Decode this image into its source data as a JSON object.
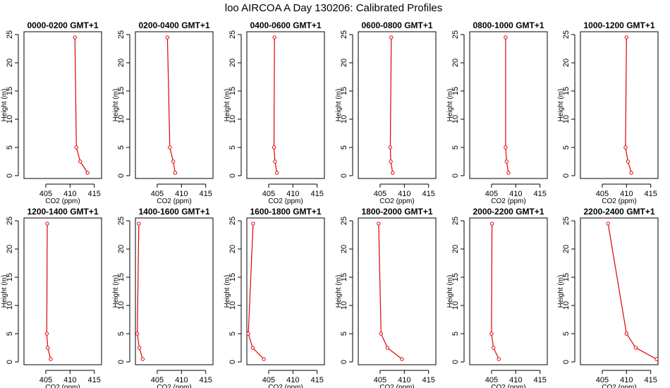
{
  "title": "loo AIRCOA A  Day 130206: Calibrated Profiles",
  "chart_data": {
    "type": "line",
    "xlabel": "CO2 (ppm)",
    "ylabel": "Height (m)",
    "xlim": [
      400.5,
      416.5
    ],
    "ylim": [
      -0.5,
      25.5
    ],
    "xticks": [
      405,
      410,
      415
    ],
    "yticks": [
      0,
      5,
      10,
      15,
      20,
      25
    ],
    "heights": [
      0.5,
      2.5,
      5,
      24.5
    ],
    "panels": [
      {
        "title": "0000-0200 GMT+1",
        "co2": [
          413.6,
          412.1,
          411.3,
          411.0
        ]
      },
      {
        "title": "0200-0400 GMT+1",
        "co2": [
          408.7,
          408.3,
          407.6,
          407.1
        ]
      },
      {
        "title": "0400-0600 GMT+1",
        "co2": [
          406.7,
          406.3,
          406.1,
          406.2
        ]
      },
      {
        "title": "0600-0800 GMT+1",
        "co2": [
          407.6,
          407.2,
          407.1,
          407.3
        ]
      },
      {
        "title": "0800-1000 GMT+1",
        "co2": [
          408.5,
          408.1,
          407.9,
          407.9
        ]
      },
      {
        "title": "1000-1200 GMT+1",
        "co2": [
          411.0,
          410.3,
          409.8,
          410.0
        ]
      },
      {
        "title": "1200-1400 GMT+1",
        "co2": [
          406.0,
          405.4,
          405.2,
          405.3
        ]
      },
      {
        "title": "1400-1600 GMT+1",
        "co2": [
          402.0,
          401.3,
          400.9,
          401.2
        ]
      },
      {
        "title": "1600-1800 GMT+1",
        "co2": [
          404.0,
          401.7,
          400.8,
          401.8
        ]
      },
      {
        "title": "1800-2000 GMT+1",
        "co2": [
          409.5,
          406.5,
          405.2,
          404.7
        ]
      },
      {
        "title": "2000-2200 GMT+1",
        "co2": [
          406.5,
          405.4,
          405.0,
          405.1
        ]
      },
      {
        "title": "2200-2400 GMT+1",
        "co2": [
          416.2,
          411.9,
          410.0,
          406.2
        ]
      }
    ]
  }
}
